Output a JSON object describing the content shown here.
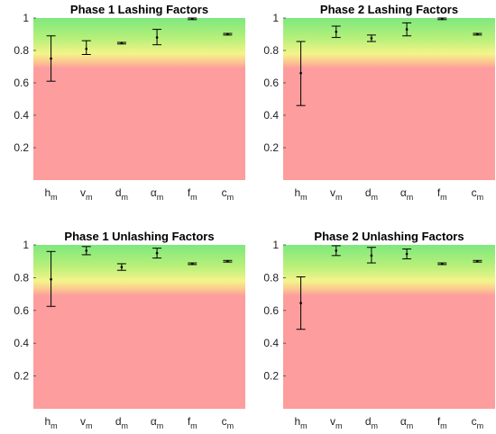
{
  "chart_data": [
    {
      "type": "errorbar",
      "title": "Phase 1 Lashing Factors",
      "ylim": [
        0,
        1
      ],
      "yticks": [
        0.2,
        0.4,
        0.6,
        0.8,
        1
      ],
      "ytick_labels": [
        "0.2",
        "0.4",
        "0.6",
        "0.8",
        "1"
      ],
      "categories": [
        {
          "main": "h",
          "sub": "m"
        },
        {
          "main": "v",
          "sub": "m"
        },
        {
          "main": "d",
          "sub": "m"
        },
        {
          "main": "α",
          "sub": "m"
        },
        {
          "main": "f",
          "sub": "m"
        },
        {
          "main": "c",
          "sub": "m"
        }
      ],
      "means": [
        0.75,
        0.81,
        0.845,
        0.88,
        0.995,
        0.9
      ],
      "lower": [
        0.61,
        0.775,
        0.84,
        0.835,
        0.99,
        0.895
      ],
      "upper": [
        0.89,
        0.86,
        0.85,
        0.93,
        1.0,
        0.905
      ],
      "background_zones": {
        "green": "#7ee87e",
        "yellow": "#f4f48a",
        "red": "#fd9d9d"
      }
    },
    {
      "type": "errorbar",
      "title": "Phase 2 Lashing Factors",
      "ylim": [
        0,
        1
      ],
      "yticks": [
        0.2,
        0.4,
        0.6,
        0.8,
        1
      ],
      "ytick_labels": [
        "0.2",
        "0.4",
        "0.6",
        "0.8",
        "1"
      ],
      "categories": [
        {
          "main": "h",
          "sub": "m"
        },
        {
          "main": "v",
          "sub": "m"
        },
        {
          "main": "d",
          "sub": "m"
        },
        {
          "main": "α",
          "sub": "m"
        },
        {
          "main": "f",
          "sub": "m"
        },
        {
          "main": "c",
          "sub": "m"
        }
      ],
      "means": [
        0.66,
        0.915,
        0.875,
        0.93,
        0.995,
        0.9
      ],
      "lower": [
        0.46,
        0.88,
        0.855,
        0.89,
        0.99,
        0.895
      ],
      "upper": [
        0.855,
        0.95,
        0.895,
        0.97,
        1.0,
        0.905
      ],
      "background_zones": {
        "green": "#7ee87e",
        "yellow": "#f4f48a",
        "red": "#fd9d9d"
      }
    },
    {
      "type": "errorbar",
      "title": "Phase 1 Unlashing Factors",
      "ylim": [
        0,
        1
      ],
      "yticks": [
        0.2,
        0.4,
        0.6,
        0.8,
        1
      ],
      "ytick_labels": [
        "0.2",
        "0.4",
        "0.6",
        "0.8",
        "1"
      ],
      "categories": [
        {
          "main": "h",
          "sub": "m"
        },
        {
          "main": "v",
          "sub": "m"
        },
        {
          "main": "d",
          "sub": "m"
        },
        {
          "main": "α",
          "sub": "m"
        },
        {
          "main": "f",
          "sub": "m"
        },
        {
          "main": "c",
          "sub": "m"
        }
      ],
      "means": [
        0.79,
        0.965,
        0.865,
        0.95,
        0.885,
        0.9
      ],
      "lower": [
        0.625,
        0.94,
        0.845,
        0.92,
        0.88,
        0.895
      ],
      "upper": [
        0.96,
        0.99,
        0.885,
        0.98,
        0.89,
        0.905
      ],
      "background_zones": {
        "green": "#7ee87e",
        "yellow": "#f4f48a",
        "red": "#fd9d9d"
      }
    },
    {
      "type": "errorbar",
      "title": "Phase 2 Unlashing Factors",
      "ylim": [
        0,
        1
      ],
      "yticks": [
        0.2,
        0.4,
        0.6,
        0.8,
        1
      ],
      "ytick_labels": [
        "0.2",
        "0.4",
        "0.6",
        "0.8",
        "1"
      ],
      "categories": [
        {
          "main": "h",
          "sub": "m"
        },
        {
          "main": "v",
          "sub": "m"
        },
        {
          "main": "d",
          "sub": "m"
        },
        {
          "main": "α",
          "sub": "m"
        },
        {
          "main": "f",
          "sub": "m"
        },
        {
          "main": "c",
          "sub": "m"
        }
      ],
      "means": [
        0.645,
        0.965,
        0.935,
        0.945,
        0.885,
        0.9
      ],
      "lower": [
        0.485,
        0.935,
        0.89,
        0.915,
        0.88,
        0.895
      ],
      "upper": [
        0.805,
        0.995,
        0.985,
        0.975,
        0.89,
        0.905
      ],
      "background_zones": {
        "green": "#7ee87e",
        "yellow": "#f4f48a",
        "red": "#fd9d9d"
      }
    }
  ]
}
